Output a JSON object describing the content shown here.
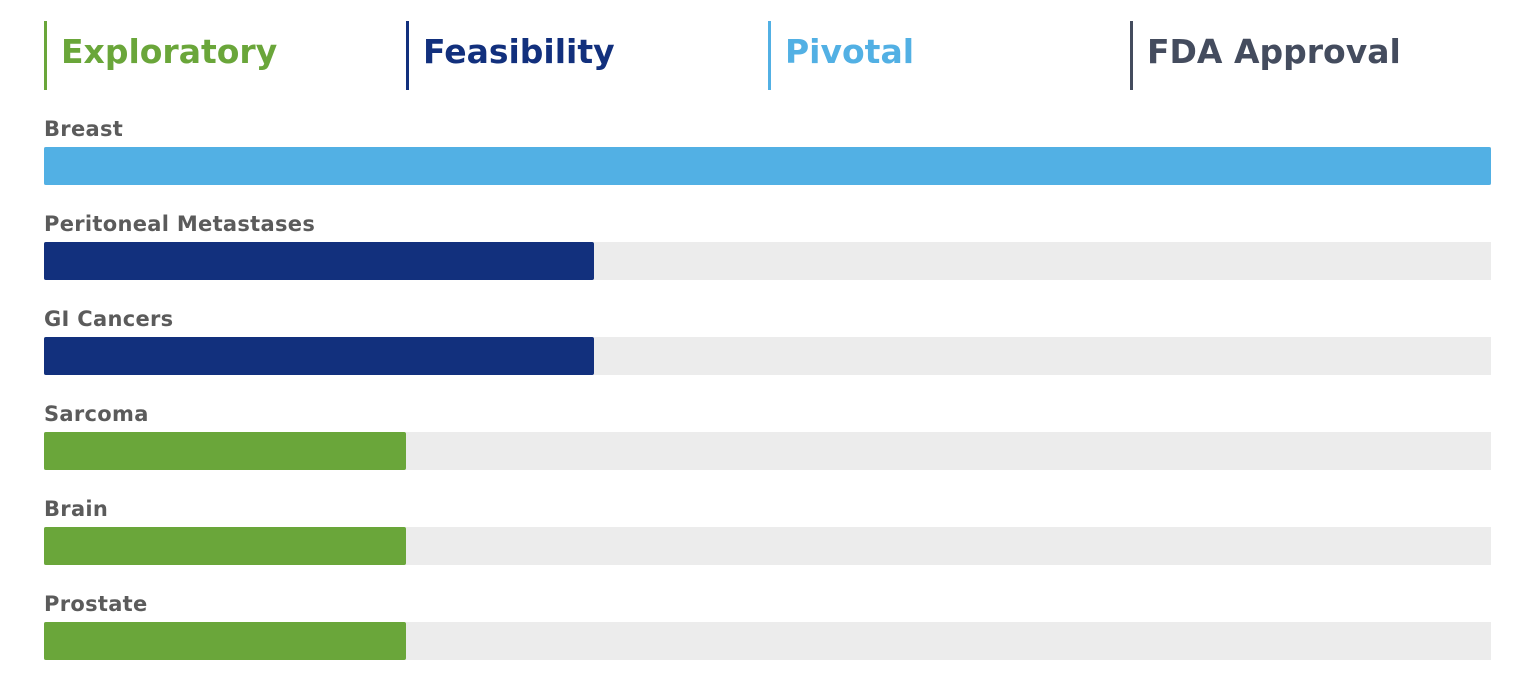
{
  "chart_data": {
    "type": "bar",
    "orientation": "horizontal",
    "stages": [
      {
        "label": "Exploratory",
        "color": "#6aa63a"
      },
      {
        "label": "Feasibility",
        "color": "#12307d"
      },
      {
        "label": "Pivotal",
        "color": "#52b0e4"
      },
      {
        "label": "FDA Approval",
        "color": "#444c5e"
      }
    ],
    "x_range": [
      0,
      4
    ],
    "categories": [
      "Breast",
      "Peritoneal Metastases",
      "GI Cancers",
      "Sarcoma",
      "Brain",
      "Prostate"
    ],
    "values": [
      4,
      1.52,
      1.52,
      1,
      1,
      1
    ],
    "bar_colors": [
      "#52b0e4",
      "#12307d",
      "#12307d",
      "#6aa63a",
      "#6aa63a",
      "#6aa63a"
    ],
    "track_color": "#ececec",
    "label_color": "#5b5b5b"
  }
}
